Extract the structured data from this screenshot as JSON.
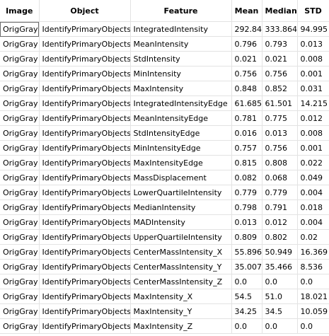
{
  "table": {
    "columns": [
      "Image",
      "Object",
      "Feature",
      "Mean",
      "Median",
      "STD"
    ],
    "rows": [
      [
        "OrigGray",
        "IdentifyPrimaryObjects",
        "IntegratedIntensity",
        "292.849",
        "333.864",
        "94.995"
      ],
      [
        "OrigGray",
        "IdentifyPrimaryObjects",
        "MeanIntensity",
        "0.796",
        "0.793",
        "0.013"
      ],
      [
        "OrigGray",
        "IdentifyPrimaryObjects",
        "StdIntensity",
        "0.021",
        "0.021",
        "0.008"
      ],
      [
        "OrigGray",
        "IdentifyPrimaryObjects",
        "MinIntensity",
        "0.756",
        "0.756",
        "0.001"
      ],
      [
        "OrigGray",
        "IdentifyPrimaryObjects",
        "MaxIntensity",
        "0.848",
        "0.852",
        "0.031"
      ],
      [
        "OrigGray",
        "IdentifyPrimaryObjects",
        "IntegratedIntensityEdge",
        "61.685",
        "61.501",
        "14.215"
      ],
      [
        "OrigGray",
        "IdentifyPrimaryObjects",
        "MeanIntensityEdge",
        "0.781",
        "0.775",
        "0.012"
      ],
      [
        "OrigGray",
        "IdentifyPrimaryObjects",
        "StdIntensityEdge",
        "0.016",
        "0.013",
        "0.008"
      ],
      [
        "OrigGray",
        "IdentifyPrimaryObjects",
        "MinIntensityEdge",
        "0.757",
        "0.756",
        "0.001"
      ],
      [
        "OrigGray",
        "IdentifyPrimaryObjects",
        "MaxIntensityEdge",
        "0.815",
        "0.808",
        "0.022"
      ],
      [
        "OrigGray",
        "IdentifyPrimaryObjects",
        "MassDisplacement",
        "0.082",
        "0.068",
        "0.049"
      ],
      [
        "OrigGray",
        "IdentifyPrimaryObjects",
        "LowerQuartileIntensity",
        "0.779",
        "0.779",
        "0.004"
      ],
      [
        "OrigGray",
        "IdentifyPrimaryObjects",
        "MedianIntensity",
        "0.798",
        "0.791",
        "0.018"
      ],
      [
        "OrigGray",
        "IdentifyPrimaryObjects",
        "MADIntensity",
        "0.013",
        "0.012",
        "0.004"
      ],
      [
        "OrigGray",
        "IdentifyPrimaryObjects",
        "UpperQuartileIntensity",
        "0.809",
        "0.802",
        "0.02"
      ],
      [
        "OrigGray",
        "IdentifyPrimaryObjects",
        "CenterMassIntensity_X",
        "55.896",
        "50.949",
        "16.369"
      ],
      [
        "OrigGray",
        "IdentifyPrimaryObjects",
        "CenterMassIntensity_Y",
        "35.007",
        "35.466",
        "8.536"
      ],
      [
        "OrigGray",
        "IdentifyPrimaryObjects",
        "CenterMassIntensity_Z",
        "0.0",
        "0.0",
        "0.0"
      ],
      [
        "OrigGray",
        "IdentifyPrimaryObjects",
        "MaxIntensity_X",
        "54.5",
        "51.0",
        "18.021"
      ],
      [
        "OrigGray",
        "IdentifyPrimaryObjects",
        "MaxIntensity_Y",
        "34.25",
        "34.5",
        "10.059"
      ],
      [
        "OrigGray",
        "IdentifyPrimaryObjects",
        "MaxIntensity_Z",
        "0.0",
        "0.0",
        "0.0"
      ]
    ],
    "selected_cell": {
      "row": 0,
      "col": 0
    }
  }
}
